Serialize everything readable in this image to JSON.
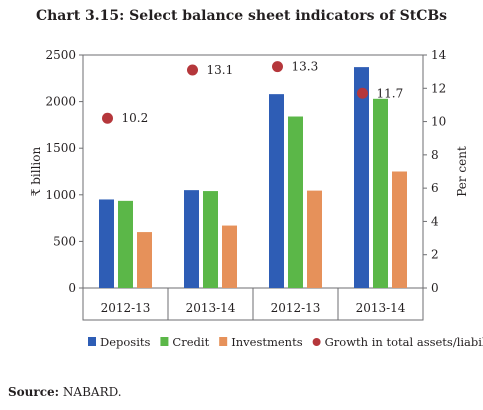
{
  "chart_data": {
    "type": "bar",
    "title": "Chart 3.15: Select balance sheet indicators of StCBs",
    "categories": [
      "2012-13",
      "2013-14",
      "2012-13",
      "2013-14"
    ],
    "series": [
      {
        "name": "Deposits",
        "axis": "left",
        "color": "#2e5db5",
        "values": [
          950,
          1050,
          2080,
          2370
        ]
      },
      {
        "name": "Credit",
        "axis": "left",
        "color": "#5bb748",
        "values": [
          935,
          1040,
          1840,
          2030
        ]
      },
      {
        "name": "Investments",
        "axis": "left",
        "color": "#e6915a",
        "values": [
          600,
          670,
          1045,
          1250
        ]
      },
      {
        "name": "Growth in total assets/liabilities (RHS)",
        "axis": "right",
        "type": "scatter",
        "color": "#b5373b",
        "values": [
          10.2,
          13.1,
          13.3,
          11.7
        ],
        "labels": [
          "10.2",
          "13.1",
          "13.3",
          "11.7"
        ]
      }
    ],
    "ylabel": "₹ billion",
    "y2label": "Per cent",
    "ylim": [
      0,
      2500
    ],
    "y2lim": [
      0,
      14
    ],
    "yticks": [
      0,
      500,
      1000,
      1500,
      2000,
      2500
    ],
    "y2ticks": [
      0,
      2,
      4,
      6,
      8,
      10,
      12,
      14
    ],
    "grid": false,
    "legend_position": "bottom"
  },
  "source": {
    "label": "Source:",
    "text": "NABARD."
  }
}
